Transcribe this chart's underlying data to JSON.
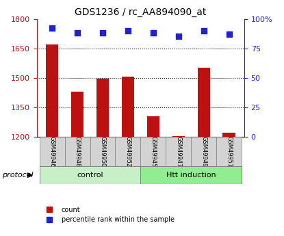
{
  "title": "GDS1236 / rc_AA894090_at",
  "samples": [
    "GSM49946",
    "GSM49948",
    "GSM49950",
    "GSM49952",
    "GSM49945",
    "GSM49947",
    "GSM49949",
    "GSM49951"
  ],
  "counts": [
    1670,
    1430,
    1495,
    1505,
    1305,
    1205,
    1550,
    1220
  ],
  "percentile_ranks": [
    92,
    88,
    88,
    90,
    88,
    85,
    90,
    87
  ],
  "groups": [
    "control",
    "control",
    "control",
    "control",
    "Htt induction",
    "Htt induction",
    "Htt induction",
    "Htt induction"
  ],
  "bar_color": "#bb1111",
  "dot_color": "#2222cc",
  "ylim_left": [
    1200,
    1800
  ],
  "ylim_right": [
    0,
    100
  ],
  "yticks_left": [
    1200,
    1350,
    1500,
    1650,
    1800
  ],
  "yticks_right": [
    0,
    25,
    50,
    75,
    100
  ],
  "grid_dotted": true,
  "xlabel_rotation": -90,
  "control_color": "#c8f0c8",
  "htt_color": "#90ee90",
  "label_color_left": "#bb1111",
  "label_color_right": "#2222cc",
  "tick_area_color": "#d3d3d3",
  "protocol_label": "protocol",
  "group_labels": [
    "control",
    "Htt induction"
  ],
  "legend_count_label": "count",
  "legend_pct_label": "percentile rank within the sample",
  "bar_bottom": 1200,
  "dot_scale_min": 0,
  "dot_scale_max": 100,
  "figsize": [
    4.15,
    3.45
  ],
  "dpi": 100
}
